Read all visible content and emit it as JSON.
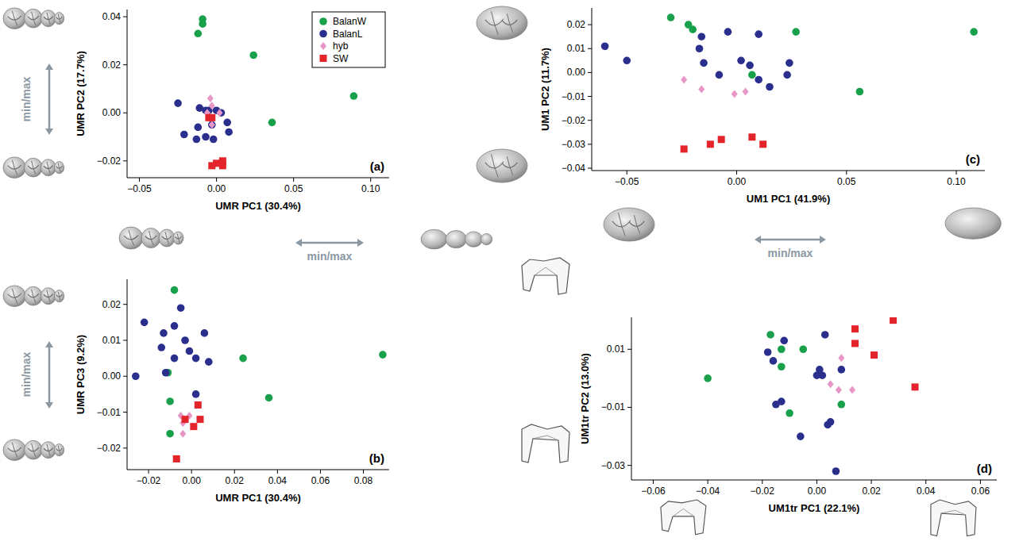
{
  "chart_data": [
    {
      "type": "scatter",
      "title": "(a)",
      "x_label": "UMR PC1 (30.4%)",
      "y_label": "UMR PC2 (17.7%)",
      "xlim": [
        -0.058,
        0.112
      ],
      "ylim": [
        -0.027,
        0.043
      ],
      "xticks": [
        {
          "value": -0.05,
          "label": "−0.05"
        },
        {
          "value": 0,
          "label": "0.00"
        },
        {
          "value": 0.05,
          "label": "0.05"
        },
        {
          "value": 0.1,
          "label": "0.10"
        }
      ],
      "yticks": [
        {
          "value": -0.02,
          "label": "−0.02"
        },
        {
          "value": 0,
          "label": "0.00"
        },
        {
          "value": 0.02,
          "label": "0.02"
        },
        {
          "value": 0.04,
          "label": "0.04"
        }
      ],
      "legend": "top-right",
      "annotations": [
        "min/max",
        "min/max"
      ],
      "series": [
        {
          "name": "BalanW",
          "color": "#19a04b",
          "marker": "circle",
          "x": [
            -0.009,
            -0.009,
            -0.012,
            0.024,
            0.089,
            0.036
          ],
          "values": [
            0.039,
            0.037,
            0.033,
            0.024,
            0.007,
            -0.004
          ]
        },
        {
          "name": "BalanL",
          "color": "#2a2f8e",
          "marker": "circle",
          "x": [
            -0.025,
            -0.021,
            -0.013,
            -0.012,
            -0.011,
            -0.007,
            -0.005,
            -0.003,
            0.0,
            0.003,
            0.007,
            0.008,
            -0.002,
            -0.007
          ],
          "values": [
            0.004,
            -0.009,
            -0.011,
            -0.006,
            0.002,
            -0.01,
            0.001,
            -0.005,
            0.001,
            0.0,
            -0.004,
            -0.008,
            -0.011,
            0.001
          ]
        },
        {
          "name": "hyb",
          "color": "#e896c6",
          "marker": "diamond",
          "x": [
            -0.004,
            -0.003,
            -0.003,
            -0.006,
            0.002
          ],
          "values": [
            0.006,
            0.003,
            -0.005,
            0.0,
            0.0
          ]
        },
        {
          "name": "SW",
          "color": "#e3242b",
          "marker": "square",
          "x": [
            -0.005,
            -0.003,
            0.0,
            -0.003,
            0.004,
            0.004
          ],
          "values": [
            -0.002,
            -0.002,
            -0.021,
            -0.022,
            -0.02,
            -0.022
          ]
        }
      ]
    },
    {
      "type": "scatter",
      "title": "(b)",
      "x_label": "UMR PC1 (30.4%)",
      "y_label": "UMR PC3 (9.2%)",
      "xlim": [
        -0.03,
        0.092
      ],
      "ylim": [
        -0.026,
        0.027
      ],
      "xticks": [
        {
          "value": -0.02,
          "label": "−0.02"
        },
        {
          "value": 0,
          "label": "0.00"
        },
        {
          "value": 0.02,
          "label": "0.02"
        },
        {
          "value": 0.04,
          "label": "0.04"
        },
        {
          "value": 0.06,
          "label": "0.06"
        },
        {
          "value": 0.08,
          "label": "0.08"
        }
      ],
      "yticks": [
        {
          "value": -0.02,
          "label": "−0.02"
        },
        {
          "value": -0.01,
          "label": "−0.01"
        },
        {
          "value": 0,
          "label": "0.00"
        },
        {
          "value": 0.01,
          "label": "0.01"
        },
        {
          "value": 0.02,
          "label": "0.02"
        }
      ],
      "annotations": [
        "min/max"
      ],
      "series": [
        {
          "color": "#19a04b",
          "marker": "circle",
          "x": [
            -0.008,
            -0.011,
            -0.01,
            -0.01,
            0.024,
            0.036,
            0.089
          ],
          "values": [
            0.024,
            0.001,
            -0.007,
            -0.016,
            0.005,
            -0.006,
            0.006
          ]
        },
        {
          "color": "#2a2f8e",
          "marker": "circle",
          "x": [
            -0.026,
            -0.022,
            -0.014,
            -0.013,
            -0.012,
            -0.008,
            -0.008,
            -0.005,
            -0.003,
            0.002,
            0.006,
            0.008,
            0.002,
            -0.001
          ],
          "values": [
            0.0,
            0.015,
            0.008,
            0.012,
            0.001,
            0.014,
            0.005,
            0.019,
            0.01,
            0.005,
            0.012,
            0.004,
            -0.005,
            0.007
          ]
        },
        {
          "color": "#e896c6",
          "marker": "diamond",
          "x": [
            -0.004,
            -0.001,
            -0.004,
            -0.005
          ],
          "values": [
            -0.013,
            -0.011,
            -0.016,
            -0.011
          ]
        },
        {
          "color": "#e3242b",
          "marker": "square",
          "x": [
            -0.003,
            0.003,
            0.004,
            0.001,
            -0.007
          ],
          "values": [
            -0.012,
            -0.008,
            -0.012,
            -0.014,
            -0.023
          ]
        }
      ]
    },
    {
      "type": "scatter",
      "title": "(c)",
      "x_label": "UM1 PC1 (41.9%)",
      "y_label": "UM1 PC2 (11.7%)",
      "xlim": [
        -0.066,
        0.113
      ],
      "ylim": [
        -0.041,
        0.027
      ],
      "xticks": [
        {
          "value": -0.05,
          "label": "−0.05"
        },
        {
          "value": 0,
          "label": "0.00"
        },
        {
          "value": 0.05,
          "label": "0.05"
        },
        {
          "value": 0.1,
          "label": "0.10"
        }
      ],
      "yticks": [
        {
          "value": -0.04,
          "label": "−0.04"
        },
        {
          "value": -0.03,
          "label": "−0.03"
        },
        {
          "value": -0.02,
          "label": "−0.02"
        },
        {
          "value": -0.01,
          "label": "−0.01"
        },
        {
          "value": 0,
          "label": "0.00"
        },
        {
          "value": 0.01,
          "label": "0.01"
        },
        {
          "value": 0.02,
          "label": "0.02"
        }
      ],
      "annotations": [
        "min/max"
      ],
      "series": [
        {
          "color": "#19a04b",
          "marker": "circle",
          "x": [
            -0.03,
            -0.022,
            -0.02,
            0.027,
            0.108,
            0.056,
            0.007
          ],
          "values": [
            0.023,
            0.02,
            0.018,
            0.017,
            0.017,
            -0.008,
            -0.001
          ]
        },
        {
          "color": "#2a2f8e",
          "marker": "circle",
          "x": [
            -0.06,
            -0.05,
            -0.016,
            -0.017,
            -0.015,
            -0.004,
            -0.008,
            0.002,
            0.006,
            0.01,
            0.01,
            0.015,
            0.024,
            0.023
          ],
          "values": [
            0.011,
            0.005,
            0.015,
            0.01,
            0.004,
            0.017,
            -0.001,
            0.005,
            0.003,
            0.016,
            -0.003,
            -0.006,
            0.004,
            -0.001
          ]
        },
        {
          "color": "#e896c6",
          "marker": "diamond",
          "x": [
            -0.024,
            -0.016,
            -0.001,
            0.004
          ],
          "values": [
            -0.003,
            -0.007,
            -0.009,
            -0.008
          ]
        },
        {
          "color": "#e3242b",
          "marker": "square",
          "x": [
            -0.024,
            -0.012,
            -0.007,
            0.007,
            0.012
          ],
          "values": [
            -0.032,
            -0.03,
            -0.028,
            -0.027,
            -0.03
          ]
        }
      ]
    },
    {
      "type": "scatter",
      "title": "(d)",
      "x_label": "UM1tr PC1 (22.1%)",
      "y_label": "UM1tr PC2 (13.0%)",
      "xlim": [
        -0.068,
        0.066
      ],
      "ylim": [
        -0.035,
        0.021
      ],
      "xticks": [
        {
          "value": -0.06,
          "label": "−0.06"
        },
        {
          "value": -0.04,
          "label": "−0.04"
        },
        {
          "value": -0.02,
          "label": "−0.02"
        },
        {
          "value": 0,
          "label": "0.00"
        },
        {
          "value": 0.02,
          "label": "0.02"
        },
        {
          "value": 0.04,
          "label": "0.04"
        },
        {
          "value": 0.06,
          "label": "0.06"
        }
      ],
      "yticks": [
        {
          "value": -0.03,
          "label": "−0.03"
        },
        {
          "value": -0.01,
          "label": "−0.01"
        },
        {
          "value": 0.01,
          "label": "0.01"
        }
      ],
      "series": [
        {
          "color": "#19a04b",
          "marker": "circle",
          "x": [
            -0.04,
            -0.017,
            -0.013,
            -0.013,
            -0.005,
            -0.01,
            0.009
          ],
          "values": [
            0.0,
            0.015,
            0.01,
            0.004,
            0.01,
            -0.012,
            -0.009
          ]
        },
        {
          "color": "#2a2f8e",
          "marker": "circle",
          "x": [
            -0.018,
            -0.016,
            -0.012,
            -0.015,
            -0.013,
            -0.006,
            0.0,
            0.001,
            0.002,
            0.003,
            0.004,
            0.005,
            0.009,
            0.007
          ],
          "values": [
            0.009,
            0.006,
            0.013,
            -0.009,
            -0.008,
            -0.02,
            0.001,
            0.003,
            0.001,
            0.015,
            -0.016,
            -0.015,
            0.003,
            -0.032
          ]
        },
        {
          "color": "#e896c6",
          "marker": "diamond",
          "x": [
            0.009,
            0.005,
            0.008,
            0.013
          ],
          "values": [
            0.007,
            -0.002,
            -0.004,
            -0.004
          ]
        },
        {
          "color": "#e3242b",
          "marker": "square",
          "x": [
            0.014,
            0.014,
            0.021,
            0.028,
            0.036
          ],
          "values": [
            0.017,
            0.012,
            0.008,
            0.02,
            -0.003
          ]
        }
      ]
    }
  ]
}
